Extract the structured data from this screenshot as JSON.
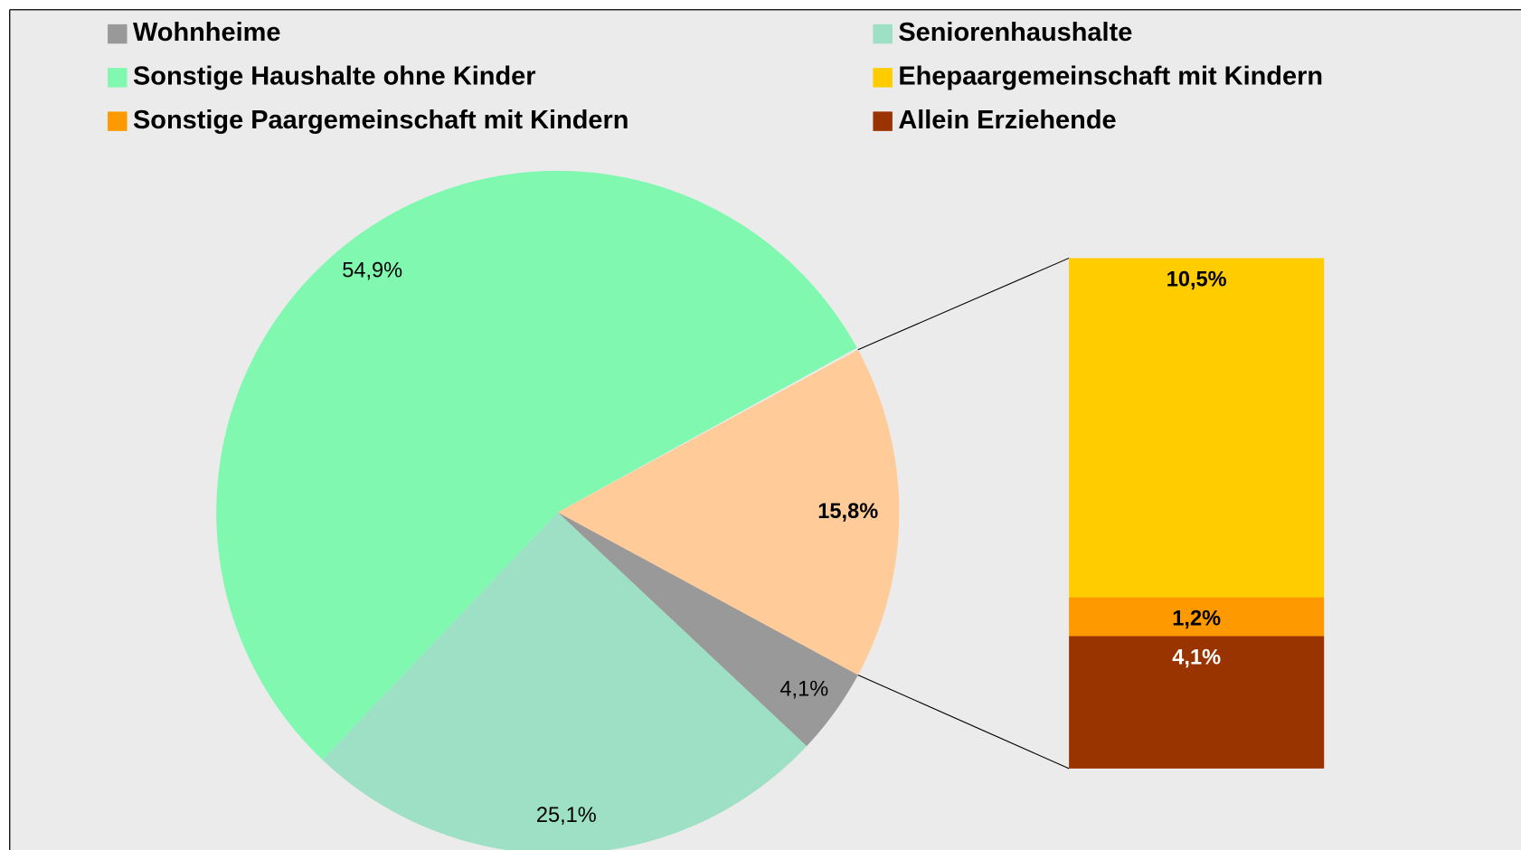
{
  "chart_data": {
    "type": "pie-of-bar",
    "series": [
      {
        "name": "Wohnheime",
        "color": "#999999",
        "part": "pie",
        "values": [
          4.1
        ],
        "value_labels": [
          "4,1%"
        ]
      },
      {
        "name": "Seniorenhaushalte",
        "color": "#9de0c5",
        "part": "pie",
        "values": [
          25.1
        ],
        "value_labels": [
          "25,1%"
        ]
      },
      {
        "name": "Sonstige Haushalte ohne Kinder",
        "color": "#80f8b0",
        "part": "pie",
        "values": [
          54.9
        ],
        "value_labels": [
          "54,9%"
        ]
      },
      {
        "name": "Ehepaargemeinschaft mit Kindern",
        "color": "#ffcc00",
        "part": "bar",
        "values": [
          10.5
        ],
        "value_labels": [
          "10,5%"
        ]
      },
      {
        "name": "Sonstige Paargemeinschaft mit Kindern",
        "color": "#ff9900",
        "part": "bar",
        "values": [
          1.2
        ],
        "value_labels": [
          "1,2%"
        ]
      },
      {
        "name": "Allein Erziehende",
        "color": "#993300",
        "part": "bar",
        "values": [
          4.1
        ],
        "value_labels": [
          "4,1%"
        ]
      }
    ],
    "other": {
      "color": "#ffcc99",
      "values": [
        15.8
      ],
      "value_labels": [
        "15,8%"
      ]
    },
    "legend": "top"
  }
}
